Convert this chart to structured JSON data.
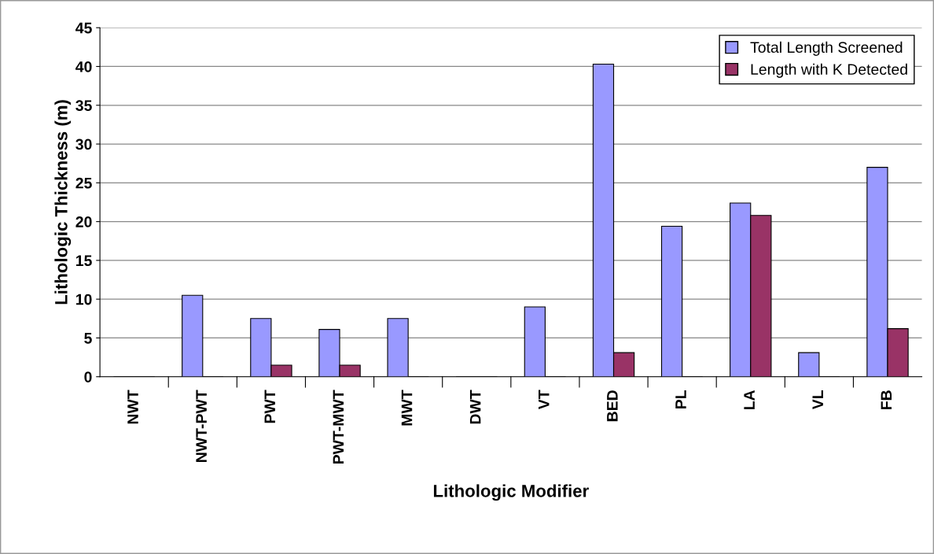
{
  "chart_data": {
    "type": "bar",
    "xlabel": "Lithologic Modifier",
    "ylabel": "Lithologic Thickness (m)",
    "categories": [
      "NWT",
      "NWT-PWT",
      "PWT",
      "PWT-MWT",
      "MWT",
      "DWT",
      "VT",
      "BED",
      "PL",
      "LA",
      "VL",
      "FB"
    ],
    "series": [
      {
        "name": "Total Length Screened",
        "color": "#9999ff",
        "values": [
          0,
          10.5,
          7.5,
          6.1,
          7.5,
          0,
          9,
          40.3,
          19.4,
          22.4,
          3.1,
          27
        ]
      },
      {
        "name": "Length with K Detected",
        "color": "#993366",
        "values": [
          0,
          0,
          1.5,
          1.5,
          0,
          0,
          0,
          3.1,
          0,
          20.8,
          0,
          6.2
        ]
      }
    ],
    "ylim": [
      0,
      45
    ],
    "yticks": [
      0,
      5,
      10,
      15,
      20,
      25,
      30,
      35,
      40,
      45
    ],
    "grid": "y",
    "legend": "top right"
  }
}
